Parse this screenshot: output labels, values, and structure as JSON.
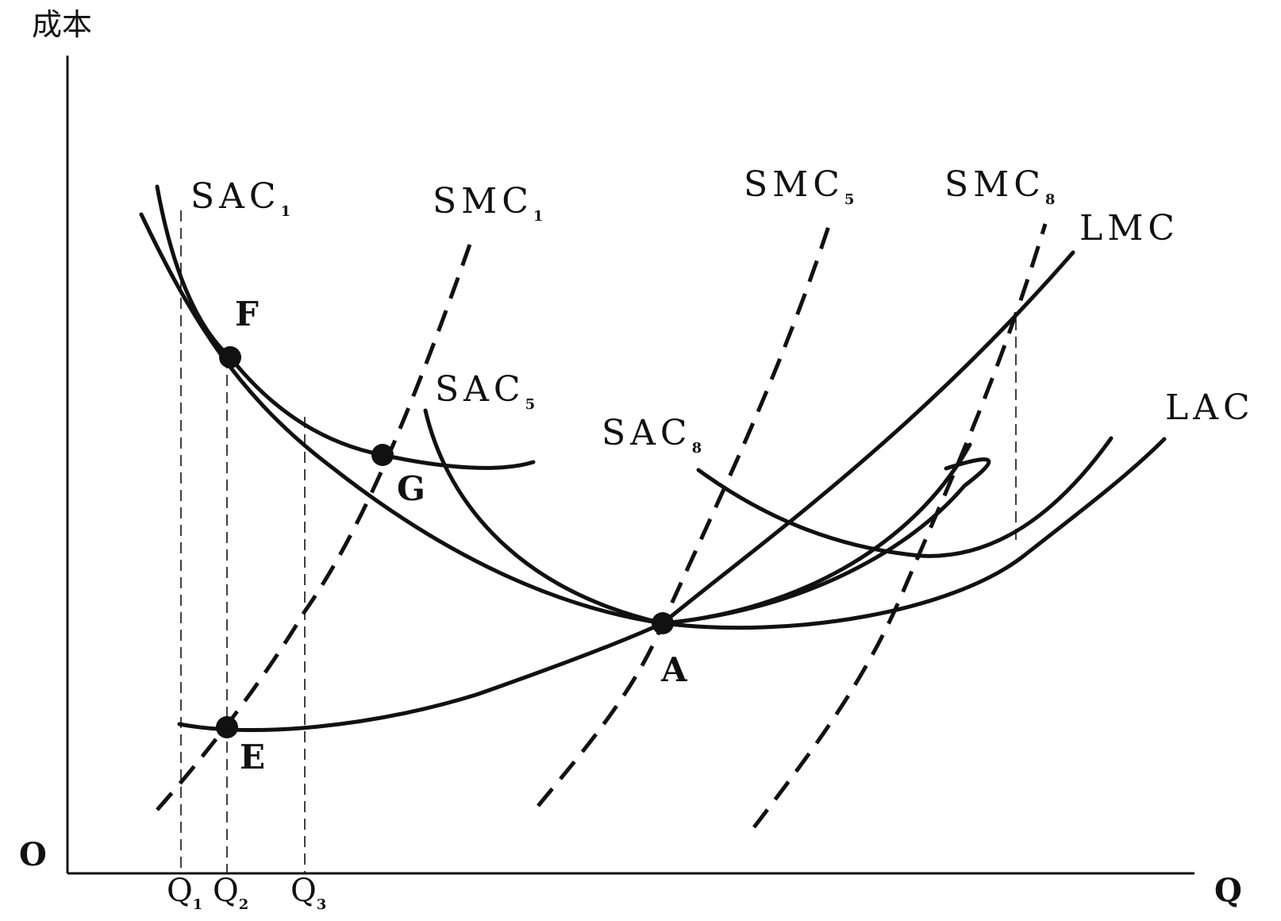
{
  "chart_data": {
    "type": "line",
    "title": "",
    "ylabel": "成本",
    "xlabel": "Q",
    "origin_label": "O",
    "grid": false,
    "legend": "none",
    "x_ticks": [
      {
        "id": "q1",
        "label": "Q",
        "sub": "1"
      },
      {
        "id": "q2",
        "label": "Q",
        "sub": "2"
      },
      {
        "id": "q3",
        "label": "Q",
        "sub": "3"
      }
    ],
    "series": [
      {
        "id": "sac1",
        "name": "SAC",
        "sub": "1",
        "style": "solid"
      },
      {
        "id": "smc1",
        "name": "SMC",
        "sub": "1",
        "style": "dashed"
      },
      {
        "id": "sac5",
        "name": "SAC",
        "sub": "5",
        "style": "solid"
      },
      {
        "id": "smc5",
        "name": "SMC",
        "sub": "5",
        "style": "dashed"
      },
      {
        "id": "sac8",
        "name": "SAC",
        "sub": "8",
        "style": "solid"
      },
      {
        "id": "smc8",
        "name": "SMC",
        "sub": "8",
        "style": "dashed"
      },
      {
        "id": "lmc",
        "name": "LMC",
        "sub": "",
        "style": "solid"
      },
      {
        "id": "lac",
        "name": "LAC",
        "sub": "",
        "style": "solid"
      }
    ],
    "points": [
      {
        "id": "F",
        "label": "F"
      },
      {
        "id": "G",
        "label": "G"
      },
      {
        "id": "E",
        "label": "E"
      },
      {
        "id": "A",
        "label": "A"
      }
    ]
  }
}
